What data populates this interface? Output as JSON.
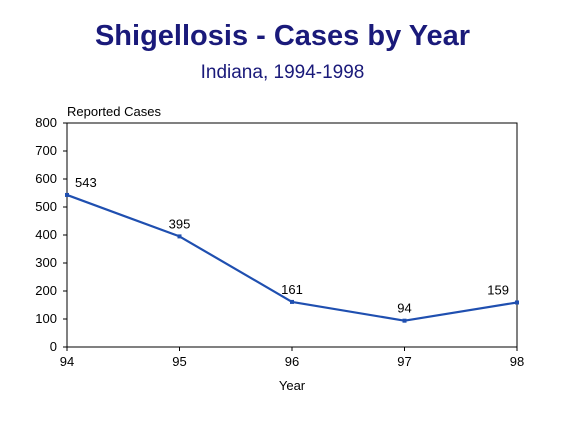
{
  "chart_data": {
    "type": "line",
    "title": "Shigellosis - Cases by Year",
    "subtitle": "Indiana, 1994-1998",
    "xlabel": "Year",
    "ylabel": "Reported Cases",
    "categories": [
      "94",
      "95",
      "96",
      "97",
      "98"
    ],
    "series": [
      {
        "values": [
          543,
          395,
          161,
          94,
          159
        ],
        "color": "#1f4fb0"
      }
    ],
    "data_labels": [
      "543",
      "395",
      "161",
      "94",
      "159"
    ],
    "ylim": [
      0,
      800
    ],
    "yticks": [
      0,
      100,
      200,
      300,
      400,
      500,
      600,
      700,
      800
    ],
    "grid": false,
    "legend": "none"
  }
}
